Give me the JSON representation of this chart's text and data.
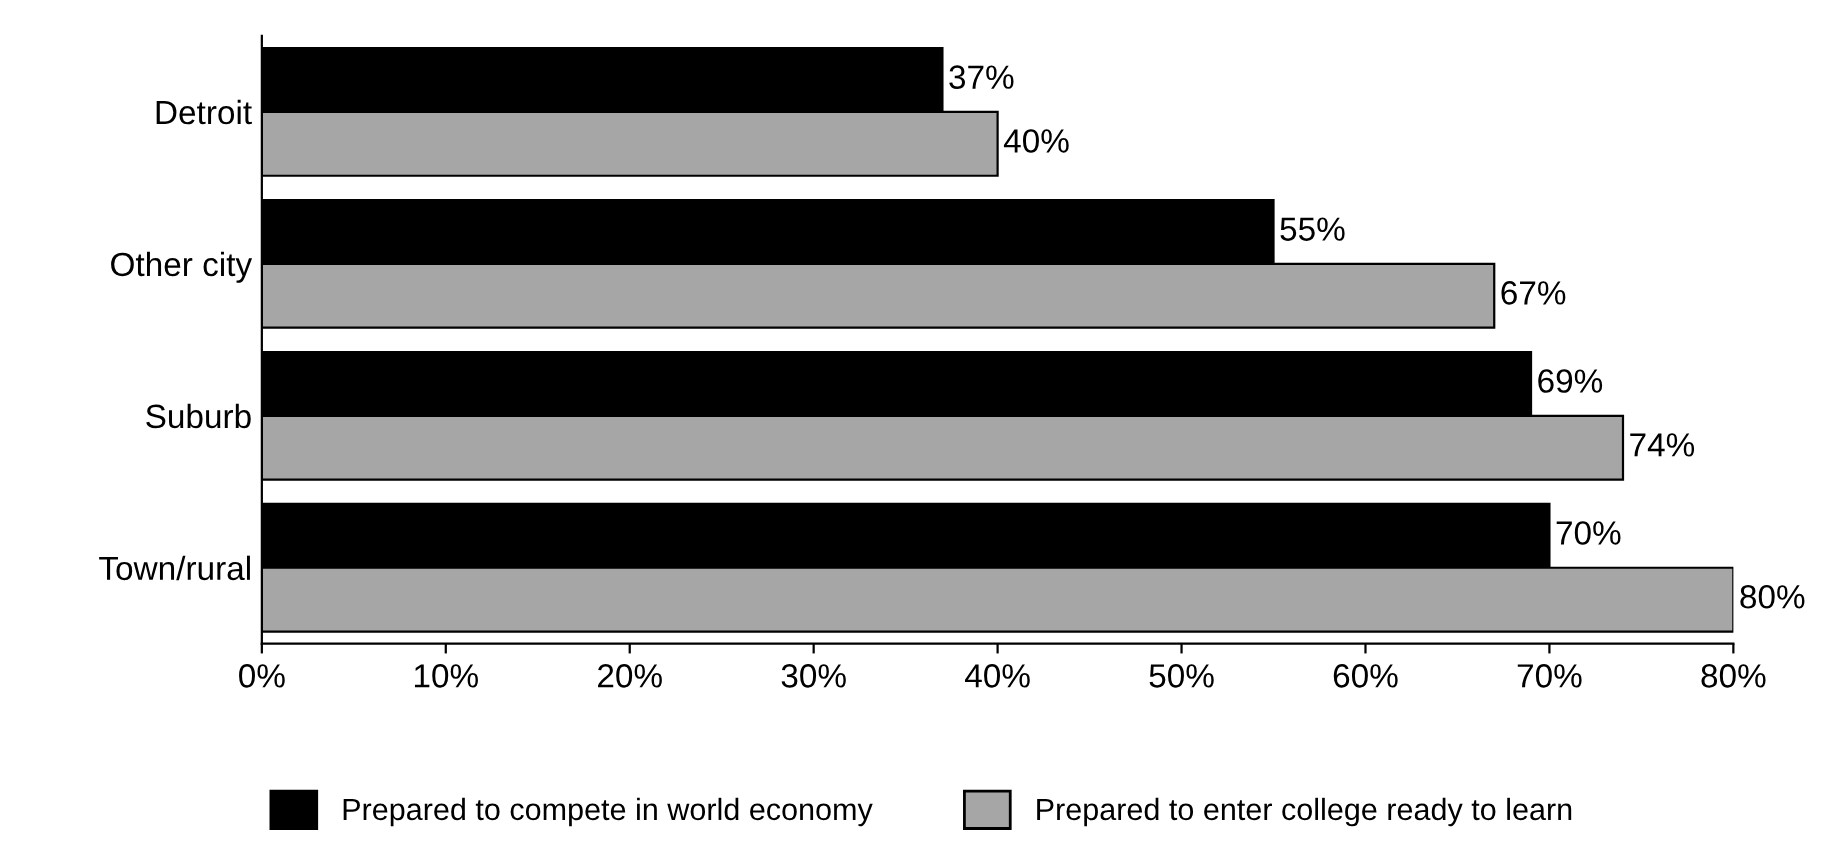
{
  "chart_data": {
    "type": "bar",
    "orientation": "horizontal",
    "categories": [
      "Detroit",
      "Other city",
      "Suburb",
      "Town/rural"
    ],
    "series": [
      {
        "name": "Prepared to compete in world economy",
        "color": "#000000",
        "values": [
          37,
          55,
          69,
          70
        ],
        "value_labels": [
          "37%",
          "55%",
          "69%",
          "70%"
        ]
      },
      {
        "name": "Prepared to enter college ready to learn",
        "color": "#a6a6a6",
        "values": [
          40,
          67,
          74,
          80
        ],
        "value_labels": [
          "40%",
          "67%",
          "74%",
          "80%"
        ]
      }
    ],
    "xlim": [
      0,
      80
    ],
    "xticks": [
      {
        "value": 0,
        "label": "0%"
      },
      {
        "value": 10,
        "label": "10%"
      },
      {
        "value": 20,
        "label": "20%"
      },
      {
        "value": 30,
        "label": "30%"
      },
      {
        "value": 40,
        "label": "40%"
      },
      {
        "value": 50,
        "label": "50%"
      },
      {
        "value": 60,
        "label": "60%"
      },
      {
        "value": 70,
        "label": "70%"
      },
      {
        "value": 80,
        "label": "80%"
      }
    ],
    "grid": false,
    "legend": "bottom"
  }
}
